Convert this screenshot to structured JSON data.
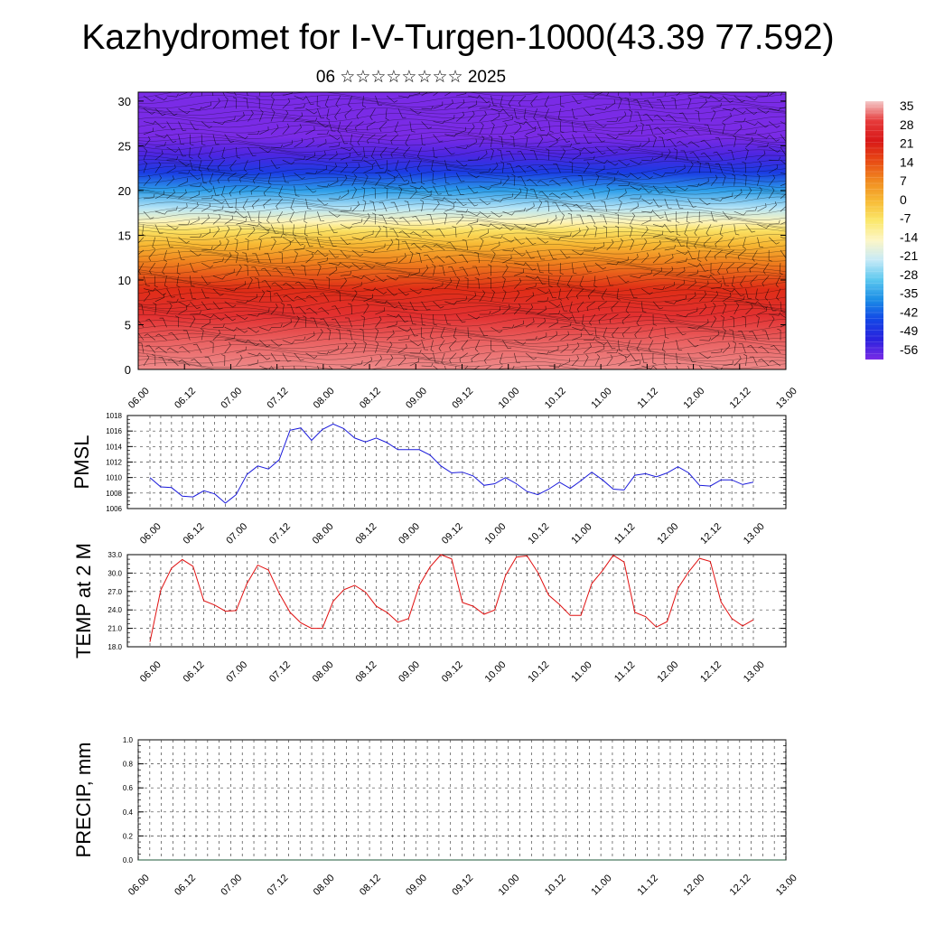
{
  "header": {
    "title": "Kazhydromet for I-V-Turgen-1000(43.39 77.592)",
    "subtitle": "06 ☆☆☆☆☆☆☆☆ 2025"
  },
  "colors": {
    "pmsl_line": "#1a1adb",
    "temp_line": "#e01010",
    "precip_line": "#1f5a3a"
  },
  "colorbar": {
    "labels": [
      "35",
      "28",
      "21",
      "14",
      "7",
      "0",
      "-7",
      "-14",
      "-21",
      "-28",
      "-35",
      "-42",
      "-49",
      "-56"
    ],
    "colors": [
      "#f4c8c8",
      "#e63a3a",
      "#d81818",
      "#e84a14",
      "#f08a20",
      "#f7b934",
      "#fbe76a",
      "#fdf6c6",
      "#c6eaf7",
      "#5bc7ef",
      "#1b8de6",
      "#1346e6",
      "#2a22dd",
      "#7a2be6"
    ]
  },
  "chart_data": [
    {
      "type": "heatmap",
      "name": "vertical-profile",
      "x_ticks": [
        "06.00",
        "06.12",
        "07.00",
        "07.12",
        "08.00",
        "08.12",
        "09.00",
        "09.12",
        "10.00",
        "10.12",
        "11.00",
        "11.12",
        "12.00",
        "12.12",
        "13.00"
      ],
      "y_ticks": [
        "0",
        "5",
        "10",
        "15",
        "20",
        "25",
        "30"
      ],
      "ylim": [
        0,
        31
      ],
      "levels": [
        0,
        3,
        6,
        9,
        12,
        14,
        15.5,
        16.5,
        18,
        20,
        22,
        24,
        26,
        28,
        31
      ],
      "level_values": [
        32,
        30,
        26,
        18,
        8,
        0,
        -6,
        -13,
        -22,
        -33,
        -44,
        -52,
        -57,
        -58,
        -60
      ]
    },
    {
      "type": "line",
      "name": "pmsl",
      "ylabel": "PMSL",
      "ylim": [
        1006,
        1018
      ],
      "y_ticks": [
        "1006",
        "1008",
        "1010",
        "1012",
        "1014",
        "1016",
        "1018"
      ],
      "x_ticks": [
        "06.00",
        "06.12",
        "07.00",
        "07.12",
        "08.00",
        "08.12",
        "09.00",
        "09.12",
        "10.00",
        "10.12",
        "11.00",
        "11.12",
        "12.00",
        "12.12",
        "13.00"
      ],
      "series": [
        {
          "values": [
            1010.0,
            1008.8,
            1008.7,
            1007.6,
            1007.5,
            1008.3,
            1007.9,
            1006.7,
            1007.8,
            1010.4,
            1011.5,
            1011.1,
            1012.3,
            1016.1,
            1016.4,
            1014.8,
            1016.2,
            1016.9,
            1016.3,
            1015.1,
            1014.6,
            1015.1,
            1014.5,
            1013.6,
            1013.6,
            1013.6,
            1012.9,
            1011.5,
            1010.6,
            1010.7,
            1010.2,
            1009.0,
            1009.2,
            1010.0,
            1009.2,
            1008.2,
            1007.8,
            1008.5,
            1009.4,
            1008.6,
            1009.6,
            1010.7,
            1009.7,
            1008.5,
            1008.4,
            1010.3,
            1010.5,
            1010.1,
            1010.6,
            1011.4,
            1010.6,
            1009.0,
            1008.9,
            1009.7,
            1009.7,
            1009.1,
            1009.4
          ]
        }
      ]
    },
    {
      "type": "line",
      "name": "temp",
      "ylabel": "TEMP at 2 M",
      "ylim": [
        18.0,
        33.0
      ],
      "y_ticks": [
        "18.0",
        "21.0",
        "24.0",
        "27.0",
        "30.0",
        "33.0"
      ],
      "x_ticks": [
        "06.00",
        "06.12",
        "07.00",
        "07.12",
        "08.00",
        "08.12",
        "09.00",
        "09.12",
        "10.00",
        "10.12",
        "11.00",
        "11.12",
        "12.00",
        "12.12",
        "13.00"
      ],
      "series": [
        {
          "values": [
            18.8,
            27.2,
            30.8,
            32.2,
            31.1,
            25.5,
            24.8,
            23.8,
            23.9,
            28.3,
            31.3,
            30.5,
            26.7,
            23.6,
            21.9,
            21.0,
            21.0,
            25.4,
            27.3,
            28.0,
            26.9,
            24.6,
            23.6,
            22.0,
            22.6,
            28.0,
            31.0,
            33.0,
            32.3,
            25.2,
            24.6,
            23.3,
            24.0,
            29.6,
            32.6,
            32.8,
            30.1,
            26.4,
            24.9,
            23.1,
            23.1,
            28.3,
            30.4,
            32.9,
            31.8,
            23.6,
            22.9,
            21.2,
            22.1,
            27.5,
            30.2,
            32.4,
            31.9,
            25.3,
            22.6,
            21.4,
            22.4
          ]
        }
      ]
    },
    {
      "type": "line",
      "name": "precip",
      "ylabel": "PRECIP, mm",
      "ylim": [
        0.0,
        1.0
      ],
      "y_ticks": [
        "0.0",
        "0.2",
        "0.4",
        "0.6",
        "0.8",
        "1.0"
      ],
      "x_ticks": [
        "06.00",
        "06.12",
        "07.00",
        "07.12",
        "08.00",
        "08.12",
        "09.00",
        "09.12",
        "10.00",
        "10.12",
        "11.00",
        "11.12",
        "12.00",
        "12.12",
        "13.00"
      ],
      "series": [
        {
          "values": [
            0,
            0,
            0,
            0,
            0,
            0,
            0,
            0,
            0,
            0,
            0,
            0,
            0,
            0,
            0,
            0,
            0,
            0,
            0,
            0,
            0,
            0,
            0,
            0,
            0,
            0,
            0,
            0,
            0,
            0,
            0,
            0,
            0,
            0,
            0,
            0,
            0,
            0,
            0,
            0,
            0,
            0,
            0,
            0,
            0,
            0,
            0,
            0,
            0,
            0,
            0,
            0,
            0,
            0,
            0,
            0,
            0
          ]
        }
      ]
    }
  ]
}
